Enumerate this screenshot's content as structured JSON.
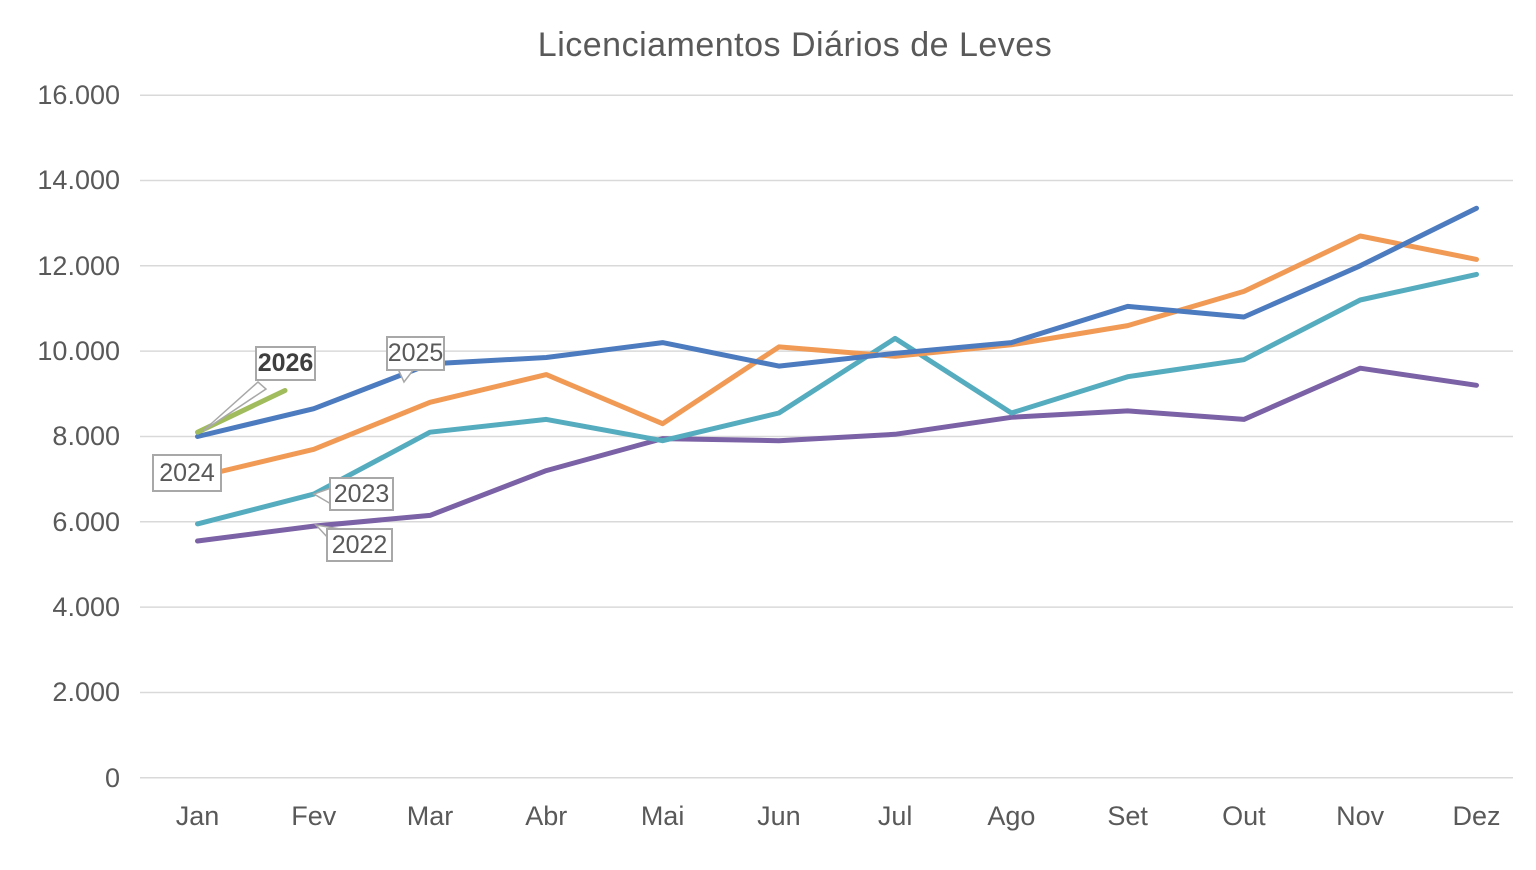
{
  "title": "Licenciamentos Diários de Leves",
  "chart_data": {
    "type": "line",
    "title": "Licenciamentos Diários de Leves",
    "categories": [
      "Jan",
      "Fev",
      "Mar",
      "Abr",
      "Mai",
      "Jun",
      "Jul",
      "Ago",
      "Set",
      "Out",
      "Nov",
      "Dez"
    ],
    "y_axis": {
      "min": 0,
      "max": 16000,
      "step": 2000,
      "tick_labels": [
        "0",
        "2.000",
        "4.000",
        "6.000",
        "8.000",
        "10.000",
        "12.000",
        "14.000",
        "16.000"
      ]
    },
    "grid": "horizontal",
    "legend_style": "callout-labels-on-lines",
    "series": [
      {
        "name": "2022",
        "color": "#7b61a5",
        "values": [
          5550,
          5900,
          6150,
          7200,
          7950,
          7900,
          8050,
          8450,
          8600,
          8400,
          9600,
          9200
        ]
      },
      {
        "name": "2023",
        "color": "#55acbe",
        "values": [
          5950,
          6650,
          8100,
          8400,
          7900,
          8550,
          10300,
          8550,
          9400,
          9800,
          11200,
          11800
        ]
      },
      {
        "name": "2024",
        "color": "#f09a55",
        "values": [
          7050,
          7700,
          8800,
          9450,
          8300,
          10100,
          9880,
          10150,
          10600,
          11400,
          12700,
          12150
        ]
      },
      {
        "name": "2025",
        "color": "#4d7bbf",
        "values": [
          8000,
          8650,
          9700,
          9850,
          10200,
          9650,
          9950,
          10200,
          11050,
          10800,
          12000,
          13350
        ]
      },
      {
        "name": "2026",
        "color": "#a1bc5c",
        "values": [
          8100,
          9400,
          null,
          null,
          null,
          null,
          null,
          null,
          null,
          null,
          null,
          null
        ]
      }
    ],
    "colors": {
      "grid": "#d9d9d9",
      "axis_text": "#595959",
      "title_text": "#595959",
      "callout_border": "#a8a8a8"
    }
  },
  "callouts": {
    "y2026": "2026",
    "y2025": "2025",
    "y2024": "2024",
    "y2023": "2023",
    "y2022": "2022"
  }
}
